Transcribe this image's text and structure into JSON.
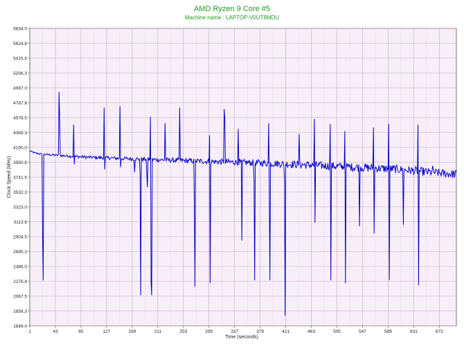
{
  "chart_data": {
    "type": "line",
    "title": "AMD Ryzen 9 Core #5",
    "subtitle": "Machine name : LAPTOP-V0UT8MDU",
    "xlabel": "Time (seconds)",
    "ylabel": "Clock Speed (MHz)",
    "xlim": [
      1,
      701
    ],
    "ylim": [
      1649.0,
      5834.0
    ],
    "x_ticks": [
      "1",
      "43",
      "85",
      "127",
      "169",
      "211",
      "253",
      "295",
      "337",
      "379",
      "421",
      "463",
      "505",
      "547",
      "589",
      "631",
      "673"
    ],
    "x_tick_values": [
      1,
      43,
      85,
      127,
      169,
      211,
      253,
      295,
      337,
      379,
      421,
      463,
      505,
      547,
      589,
      631,
      673
    ],
    "y_ticks": [
      "5834.0",
      "5624.8",
      "5415.5",
      "5206.3",
      "4997.0",
      "4787.8",
      "4578.5",
      "4369.3",
      "4160.0",
      "3950.8",
      "3741.5",
      "3532.3",
      "3323.0",
      "3113.8",
      "2904.5",
      "2695.3",
      "2486.0",
      "2276.8",
      "2067.5",
      "1858.3",
      "1649.0"
    ],
    "y_tick_values": [
      5834.0,
      5624.8,
      5415.5,
      5206.3,
      4997.0,
      4787.8,
      4578.5,
      4369.3,
      4160.0,
      3950.8,
      3741.5,
      3532.3,
      3323.0,
      3113.8,
      2904.5,
      2695.3,
      2486.0,
      2276.8,
      2067.5,
      1858.3,
      1649.0
    ],
    "grid": true,
    "baseline": {
      "points": [
        [
          1,
          4110
        ],
        [
          10,
          4080
        ],
        [
          20,
          4065
        ],
        [
          60,
          4040
        ],
        [
          100,
          4020
        ],
        [
          150,
          4005
        ],
        [
          200,
          3990
        ],
        [
          250,
          3975
        ],
        [
          300,
          3960
        ],
        [
          350,
          3948
        ],
        [
          400,
          3935
        ],
        [
          450,
          3915
        ],
        [
          500,
          3895
        ],
        [
          550,
          3875
        ],
        [
          600,
          3855
        ],
        [
          650,
          3815
        ],
        [
          701,
          3780
        ]
      ],
      "noise": [
        8,
        10,
        12,
        18,
        22,
        25,
        30,
        35,
        40,
        45,
        50,
        55,
        55,
        60,
        60,
        60,
        60
      ]
    },
    "spikes": [
      {
        "x": 22,
        "y": 2940
      },
      {
        "x": 23,
        "y": 2290
      },
      {
        "x": 49,
        "y": 4940
      },
      {
        "x": 50,
        "y": 4580
      },
      {
        "x": 73,
        "y": 4480
      },
      {
        "x": 74,
        "y": 3920
      },
      {
        "x": 123,
        "y": 4720
      },
      {
        "x": 124,
        "y": 3850
      },
      {
        "x": 149,
        "y": 4740
      },
      {
        "x": 150,
        "y": 3880
      },
      {
        "x": 173,
        "y": 3810
      },
      {
        "x": 182,
        "y": 3780
      },
      {
        "x": 183,
        "y": 2080
      },
      {
        "x": 193,
        "y": 3780
      },
      {
        "x": 194,
        "y": 3600
      },
      {
        "x": 199,
        "y": 4590
      },
      {
        "x": 200,
        "y": 2270
      },
      {
        "x": 201,
        "y": 2080
      },
      {
        "x": 223,
        "y": 4500
      },
      {
        "x": 247,
        "y": 4720
      },
      {
        "x": 271,
        "y": 3400
      },
      {
        "x": 272,
        "y": 2200
      },
      {
        "x": 296,
        "y": 4330
      },
      {
        "x": 297,
        "y": 2250
      },
      {
        "x": 320,
        "y": 4700
      },
      {
        "x": 321,
        "y": 4560
      },
      {
        "x": 343,
        "y": 4420
      },
      {
        "x": 349,
        "y": 2850
      },
      {
        "x": 369,
        "y": 3680
      },
      {
        "x": 370,
        "y": 2290
      },
      {
        "x": 393,
        "y": 4500
      },
      {
        "x": 394,
        "y": 3550
      },
      {
        "x": 395,
        "y": 2290
      },
      {
        "x": 419,
        "y": 3680
      },
      {
        "x": 420,
        "y": 1790
      },
      {
        "x": 443,
        "y": 4350
      },
      {
        "x": 468,
        "y": 4560
      },
      {
        "x": 469,
        "y": 3100
      },
      {
        "x": 494,
        "y": 4490
      },
      {
        "x": 495,
        "y": 2290
      },
      {
        "x": 518,
        "y": 4390
      },
      {
        "x": 519,
        "y": 2250
      },
      {
        "x": 542,
        "y": 3050
      },
      {
        "x": 565,
        "y": 4440
      },
      {
        "x": 566,
        "y": 2950
      },
      {
        "x": 590,
        "y": 4490
      },
      {
        "x": 591,
        "y": 2290
      },
      {
        "x": 614,
        "y": 3070
      },
      {
        "x": 638,
        "y": 4480
      },
      {
        "x": 639,
        "y": 2220
      },
      {
        "x": 662,
        "y": 3900
      }
    ],
    "line_color": "#0000c8",
    "plot_background": "#f7eef7",
    "grid_color": "#c7a5c7",
    "title_color": "#1f9a1f"
  }
}
